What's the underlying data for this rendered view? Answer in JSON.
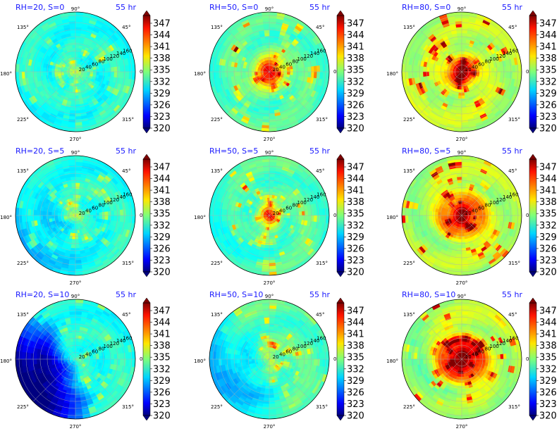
{
  "chart_data": {
    "type": "heatmap",
    "panel_grid": {
      "rows": 3,
      "cols": 3
    },
    "panels": [
      {
        "title": "RH=20, S=0",
        "time": "55 hr",
        "rh": 20,
        "s": 0
      },
      {
        "title": "RH=50, S=0",
        "time": "55 hr",
        "rh": 50,
        "s": 0
      },
      {
        "title": "RH=80, S=0",
        "time": "55 hr",
        "rh": 80,
        "s": 0
      },
      {
        "title": "RH=20, S=5",
        "time": "55 hr",
        "rh": 20,
        "s": 5
      },
      {
        "title": "RH=50, S=5",
        "time": "55 hr",
        "rh": 50,
        "s": 5
      },
      {
        "title": "RH=80, S=5",
        "time": "55 hr",
        "rh": 80,
        "s": 5
      },
      {
        "title": "RH=20, S=10",
        "time": "55 hr",
        "rh": 20,
        "s": 10
      },
      {
        "title": "RH=50, S=10",
        "time": "55 hr",
        "rh": 50,
        "s": 10
      },
      {
        "title": "RH=80, S=10",
        "time": "55 hr",
        "rh": 80,
        "s": 10
      }
    ],
    "polar": {
      "angle_labels": [
        "0°",
        "45°",
        "90°",
        "135°",
        "180°",
        "225°",
        "270°",
        "315°"
      ],
      "radial_ticks": [
        "20",
        "40",
        "60",
        "80",
        "100",
        "120",
        "140",
        "160"
      ],
      "rmax": 170
    },
    "colorbar": {
      "ticks": [
        "320",
        "323",
        "326",
        "329",
        "332",
        "335",
        "338",
        "341",
        "344",
        "347"
      ],
      "range": [
        320,
        349
      ],
      "colormap": "jet",
      "extend": "both"
    }
  }
}
